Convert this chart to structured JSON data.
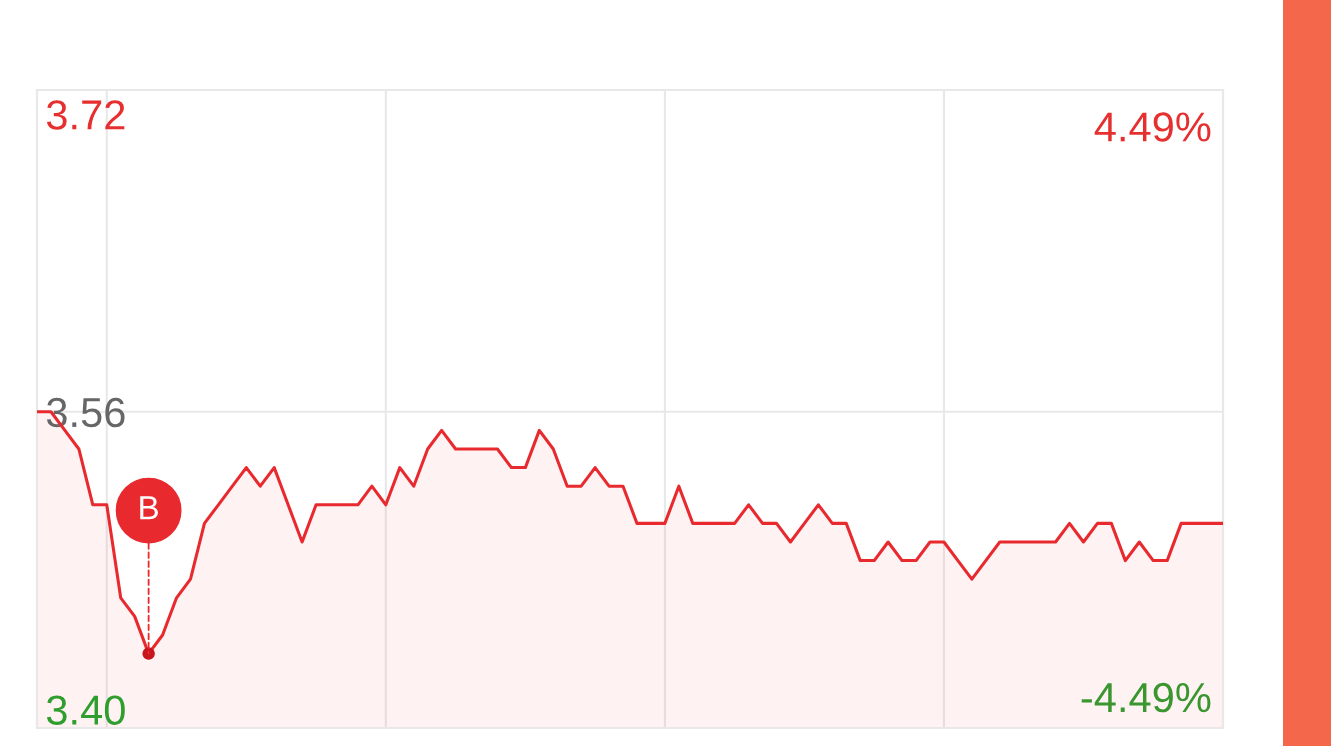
{
  "chart_data": {
    "type": "area",
    "categories": [
      null,
      null,
      null,
      null,
      null,
      null,
      null,
      null,
      null,
      null,
      null,
      null,
      null,
      null,
      null,
      null,
      null,
      null,
      null,
      null,
      null,
      null,
      null,
      null,
      null,
      null,
      null,
      null,
      null,
      null,
      null,
      null,
      null,
      null,
      null,
      null,
      null,
      null,
      null,
      null,
      null,
      null,
      null,
      null,
      null,
      null,
      null,
      null,
      null,
      null,
      null,
      null,
      null,
      null,
      null,
      null,
      null,
      null,
      null,
      null,
      null,
      null,
      null,
      null,
      null,
      null,
      null,
      null,
      null,
      null,
      null,
      null,
      null,
      null,
      null,
      null,
      null,
      null,
      null,
      null,
      null,
      null,
      null,
      null,
      null,
      null
    ],
    "series": [
      {
        "color": "#e82a2f",
        "values": [
          3.56,
          3.56,
          3.55,
          3.54,
          3.51,
          3.51,
          3.46,
          3.45,
          3.43,
          3.44,
          3.46,
          3.47,
          3.5,
          3.51,
          3.52,
          3.53,
          3.52,
          3.53,
          3.51,
          3.49,
          3.51,
          3.51,
          3.51,
          3.51,
          3.52,
          3.51,
          3.53,
          3.52,
          3.54,
          3.55,
          3.54,
          3.54,
          3.54,
          3.54,
          3.53,
          3.53,
          3.55,
          3.54,
          3.52,
          3.52,
          3.53,
          3.52,
          3.52,
          3.5,
          3.5,
          3.5,
          3.52,
          3.5,
          3.5,
          3.5,
          3.5,
          3.51,
          3.5,
          3.5,
          3.49,
          3.5,
          3.51,
          3.5,
          3.5,
          3.48,
          3.48,
          3.49,
          3.48,
          3.48,
          3.49,
          3.49,
          3.48,
          3.47,
          3.48,
          3.49,
          3.49,
          3.49,
          3.49,
          3.49,
          3.5,
          3.49,
          3.5,
          3.5,
          3.48,
          3.49,
          3.48,
          3.48,
          3.5,
          3.5,
          3.5,
          3.5
        ]
      }
    ],
    "ylim": [
      3.39,
      3.733
    ],
    "yticks": [
      3.72,
      3.56,
      {
        "value": 3.4,
        "label": "3.40"
      }
    ],
    "y2lim": [
      -4.98,
      5.06
    ],
    "y2ticks": [
      {
        "value": 4.49,
        "label": "4.49%"
      },
      {
        "value": -4.49,
        "label": "-4.49%"
      }
    ],
    "ref_lines": [
      {
        "axis": "y",
        "value": 3.56,
        "color": "#e8e8e8"
      }
    ],
    "grid": "x",
    "annotations": [
      {
        "text": "B",
        "y": 3.43
      }
    ]
  }
}
